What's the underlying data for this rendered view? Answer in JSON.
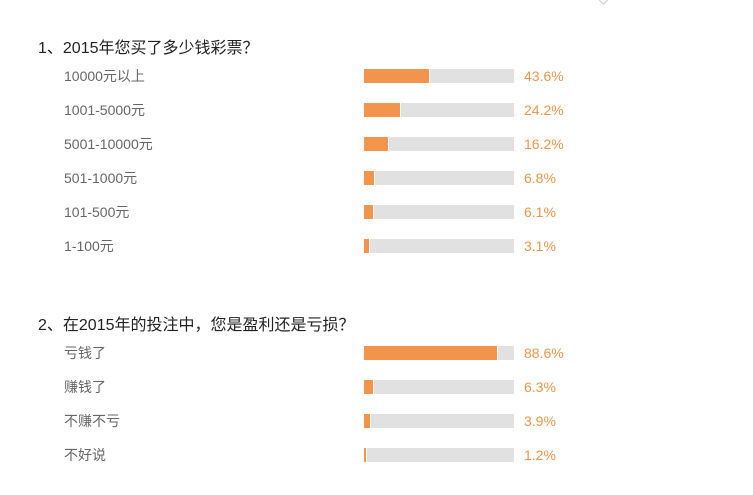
{
  "accent_color": "#f2944b",
  "track_color": "#e1e1e1",
  "questions": [
    {
      "title": "1、2015年您买了多少钱彩票？",
      "options": [
        {
          "label": "10000元以上",
          "percent": 43.6,
          "percent_text": "43.6%"
        },
        {
          "label": "1001-5000元",
          "percent": 24.2,
          "percent_text": "24.2%"
        },
        {
          "label": "5001-10000元",
          "percent": 16.2,
          "percent_text": "16.2%"
        },
        {
          "label": "501-1000元",
          "percent": 6.8,
          "percent_text": "6.8%"
        },
        {
          "label": "101-500元",
          "percent": 6.1,
          "percent_text": "6.1%"
        },
        {
          "label": "1-100元",
          "percent": 3.1,
          "percent_text": "3.1%"
        }
      ]
    },
    {
      "title": "2、在2015年的投注中，您是盈利还是亏损？",
      "options": [
        {
          "label": "亏钱了",
          "percent": 88.6,
          "percent_text": "88.6%"
        },
        {
          "label": "赚钱了",
          "percent": 6.3,
          "percent_text": "6.3%"
        },
        {
          "label": "不赚不亏",
          "percent": 3.9,
          "percent_text": "3.9%"
        },
        {
          "label": "不好说",
          "percent": 1.2,
          "percent_text": "1.2%"
        }
      ]
    }
  ]
}
